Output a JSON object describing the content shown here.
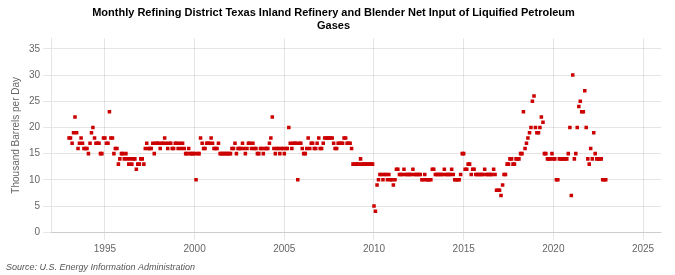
{
  "chart_data": {
    "type": "scatter",
    "title": "Monthly Refining District Texas Inland Refinery and Blender Net Input of Liquified Petroleum\nGases",
    "ylabel": "Thousand Barrels per Day",
    "annotations": [
      "Source: U.S. Energy Information Administration"
    ],
    "color": "#cc0000",
    "marker": "square",
    "grid": true,
    "xlim": [
      1992.0,
      2026.0
    ],
    "ylim": [
      0,
      37
    ],
    "xticks": [
      1995,
      2000,
      2005,
      2010,
      2015,
      2020,
      2025
    ],
    "yticks": [
      0,
      5,
      10,
      15,
      20,
      25,
      30,
      35
    ],
    "x": [
      1993.0,
      1993.08,
      1993.17,
      1993.25,
      1993.33,
      1993.42,
      1993.5,
      1993.58,
      1993.67,
      1993.75,
      1993.83,
      1993.92,
      1994.0,
      1994.08,
      1994.17,
      1994.25,
      1994.33,
      1994.42,
      1994.5,
      1994.58,
      1994.67,
      1994.75,
      1994.83,
      1994.92,
      1995.0,
      1995.08,
      1995.17,
      1995.25,
      1995.33,
      1995.42,
      1995.5,
      1995.58,
      1995.67,
      1995.75,
      1995.83,
      1995.92,
      1996.0,
      1996.08,
      1996.17,
      1996.25,
      1996.33,
      1996.42,
      1996.5,
      1996.58,
      1996.67,
      1996.75,
      1996.83,
      1996.92,
      1997.0,
      1997.08,
      1997.17,
      1997.25,
      1997.33,
      1997.42,
      1997.5,
      1997.58,
      1997.67,
      1997.75,
      1997.83,
      1997.92,
      1998.0,
      1998.08,
      1998.17,
      1998.25,
      1998.33,
      1998.42,
      1998.5,
      1998.58,
      1998.67,
      1998.75,
      1998.83,
      1998.92,
      1999.0,
      1999.08,
      1999.17,
      1999.25,
      1999.33,
      1999.42,
      1999.5,
      1999.58,
      1999.67,
      1999.75,
      1999.83,
      1999.92,
      2000.0,
      2000.08,
      2000.17,
      2000.25,
      2000.33,
      2000.42,
      2000.5,
      2000.58,
      2000.67,
      2000.75,
      2000.83,
      2000.92,
      2001.0,
      2001.08,
      2001.17,
      2001.25,
      2001.33,
      2001.42,
      2001.5,
      2001.58,
      2001.67,
      2001.75,
      2001.83,
      2001.92,
      2002.0,
      2002.08,
      2002.17,
      2002.25,
      2002.33,
      2002.42,
      2002.5,
      2002.58,
      2002.67,
      2002.75,
      2002.83,
      2002.92,
      2003.0,
      2003.08,
      2003.17,
      2003.25,
      2003.33,
      2003.42,
      2003.5,
      2003.58,
      2003.67,
      2003.75,
      2003.83,
      2003.92,
      2004.0,
      2004.08,
      2004.17,
      2004.25,
      2004.33,
      2004.42,
      2004.5,
      2004.58,
      2004.67,
      2004.75,
      2004.83,
      2004.92,
      2005.0,
      2005.08,
      2005.17,
      2005.25,
      2005.33,
      2005.42,
      2005.5,
      2005.58,
      2005.67,
      2005.75,
      2005.83,
      2005.92,
      2006.0,
      2006.08,
      2006.17,
      2006.25,
      2006.33,
      2006.42,
      2006.5,
      2006.58,
      2006.67,
      2006.75,
      2006.83,
      2006.92,
      2007.0,
      2007.08,
      2007.17,
      2007.25,
      2007.33,
      2007.42,
      2007.5,
      2007.58,
      2007.67,
      2007.75,
      2007.83,
      2007.92,
      2008.0,
      2008.08,
      2008.17,
      2008.25,
      2008.33,
      2008.42,
      2008.5,
      2008.58,
      2008.67,
      2008.75,
      2008.83,
      2008.92,
      2009.0,
      2009.08,
      2009.17,
      2009.25,
      2009.33,
      2009.42,
      2009.5,
      2009.58,
      2009.67,
      2009.75,
      2009.83,
      2009.92,
      2010.0,
      2010.08,
      2010.17,
      2010.25,
      2010.33,
      2010.42,
      2010.5,
      2010.58,
      2010.67,
      2010.75,
      2010.83,
      2010.92,
      2011.0,
      2011.08,
      2011.17,
      2011.25,
      2011.33,
      2011.42,
      2011.5,
      2011.58,
      2011.67,
      2011.75,
      2011.83,
      2011.92,
      2012.0,
      2012.08,
      2012.17,
      2012.25,
      2012.33,
      2012.42,
      2012.5,
      2012.58,
      2012.67,
      2012.75,
      2012.83,
      2012.92,
      2013.0,
      2013.08,
      2013.17,
      2013.25,
      2013.33,
      2013.42,
      2013.5,
      2013.58,
      2013.67,
      2013.75,
      2013.83,
      2013.92,
      2014.0,
      2014.08,
      2014.17,
      2014.25,
      2014.33,
      2014.42,
      2014.5,
      2014.58,
      2014.67,
      2014.75,
      2014.83,
      2014.92,
      2015.0,
      2015.08,
      2015.17,
      2015.25,
      2015.33,
      2015.42,
      2015.5,
      2015.58,
      2015.67,
      2015.75,
      2015.83,
      2015.92,
      2016.0,
      2016.08,
      2016.17,
      2016.25,
      2016.33,
      2016.42,
      2016.5,
      2016.58,
      2016.67,
      2016.75,
      2016.83,
      2016.92,
      2017.0,
      2017.08,
      2017.17,
      2017.25,
      2017.33,
      2017.42,
      2017.5,
      2017.58,
      2017.67,
      2017.75,
      2017.83,
      2017.92,
      2018.0,
      2018.08,
      2018.17,
      2018.25,
      2018.33,
      2018.42,
      2018.5,
      2018.58,
      2018.67,
      2018.75,
      2018.83,
      2018.92,
      2019.0,
      2019.08,
      2019.17,
      2019.25,
      2019.33,
      2019.42,
      2019.5,
      2019.58,
      2019.67,
      2019.75,
      2019.83,
      2019.92,
      2020.0,
      2020.08,
      2020.17,
      2020.25,
      2020.33,
      2020.42,
      2020.5,
      2020.58,
      2020.67,
      2020.75,
      2020.83,
      2020.92,
      2021.0,
      2021.08,
      2021.17,
      2021.25,
      2021.33,
      2021.42,
      2021.5,
      2021.58,
      2021.67,
      2021.75,
      2021.83,
      2021.92,
      2022.0,
      2022.08,
      2022.17,
      2022.25,
      2022.33,
      2022.42,
      2022.5,
      2022.58,
      2022.67,
      2022.75,
      2022.83,
      2022.92
    ],
    "values": [
      18,
      18,
      17,
      19,
      22,
      19,
      16,
      17,
      18,
      17,
      16,
      16,
      16,
      15,
      17,
      19,
      20,
      18,
      17,
      17,
      17,
      15,
      15,
      18,
      18,
      17,
      17,
      23,
      18,
      18,
      15,
      16,
      16,
      13,
      14,
      15,
      15,
      14,
      15,
      14,
      13,
      14,
      13,
      14,
      14,
      12,
      13,
      13,
      14,
      14,
      13,
      16,
      17,
      16,
      16,
      16,
      17,
      15,
      17,
      17,
      17,
      16,
      17,
      17,
      18,
      17,
      16,
      17,
      17,
      16,
      16,
      17,
      17,
      16,
      17,
      16,
      17,
      16,
      15,
      15,
      16,
      15,
      15,
      15,
      15,
      10,
      15,
      15,
      18,
      17,
      16,
      16,
      17,
      17,
      17,
      18,
      17,
      16,
      16,
      16,
      17,
      15,
      15,
      15,
      15,
      15,
      15,
      15,
      15,
      16,
      16,
      17,
      15,
      16,
      16,
      16,
      17,
      16,
      15,
      16,
      17,
      17,
      16,
      17,
      16,
      16,
      15,
      15,
      16,
      16,
      15,
      16,
      16,
      16,
      17,
      18,
      22,
      16,
      15,
      16,
      16,
      15,
      16,
      16,
      15,
      16,
      16,
      20,
      17,
      16,
      17,
      17,
      17,
      10,
      17,
      17,
      16,
      15,
      15,
      16,
      18,
      16,
      17,
      17,
      16,
      16,
      17,
      18,
      16,
      16,
      17,
      18,
      18,
      18,
      18,
      18,
      18,
      17,
      16,
      16,
      17,
      17,
      17,
      17,
      18,
      18,
      17,
      17,
      17,
      16,
      13,
      13,
      13,
      13,
      13,
      14,
      13,
      13,
      13,
      13,
      13,
      13,
      13,
      13,
      5,
      4,
      9,
      10,
      11,
      11,
      10,
      11,
      11,
      10,
      11,
      10,
      10,
      9,
      10,
      12,
      12,
      11,
      11,
      11,
      12,
      11,
      11,
      11,
      11,
      11,
      12,
      11,
      11,
      11,
      11,
      11,
      10,
      10,
      11,
      10,
      10,
      10,
      10,
      12,
      12,
      11,
      11,
      11,
      11,
      11,
      11,
      12,
      11,
      11,
      11,
      11,
      12,
      11,
      10,
      10,
      10,
      10,
      11,
      15,
      15,
      12,
      12,
      13,
      13,
      11,
      12,
      12,
      11,
      11,
      11,
      11,
      11,
      11,
      12,
      11,
      11,
      11,
      11,
      11,
      12,
      11,
      8,
      8,
      8,
      7,
      9,
      11,
      11,
      13,
      13,
      14,
      14,
      13,
      13,
      14,
      14,
      14,
      15,
      15,
      23,
      16,
      17,
      18,
      19,
      20,
      25,
      26,
      20,
      19,
      19,
      20,
      22,
      21,
      15,
      15,
      14,
      14,
      14,
      15,
      14,
      14,
      10,
      10,
      14,
      14,
      14,
      14,
      14,
      14,
      15,
      20,
      7,
      30,
      14,
      15,
      20,
      24,
      25,
      23,
      23,
      27,
      20,
      14,
      13,
      16,
      14,
      19,
      15,
      14,
      14,
      14,
      14,
      10,
      10,
      10
    ]
  }
}
